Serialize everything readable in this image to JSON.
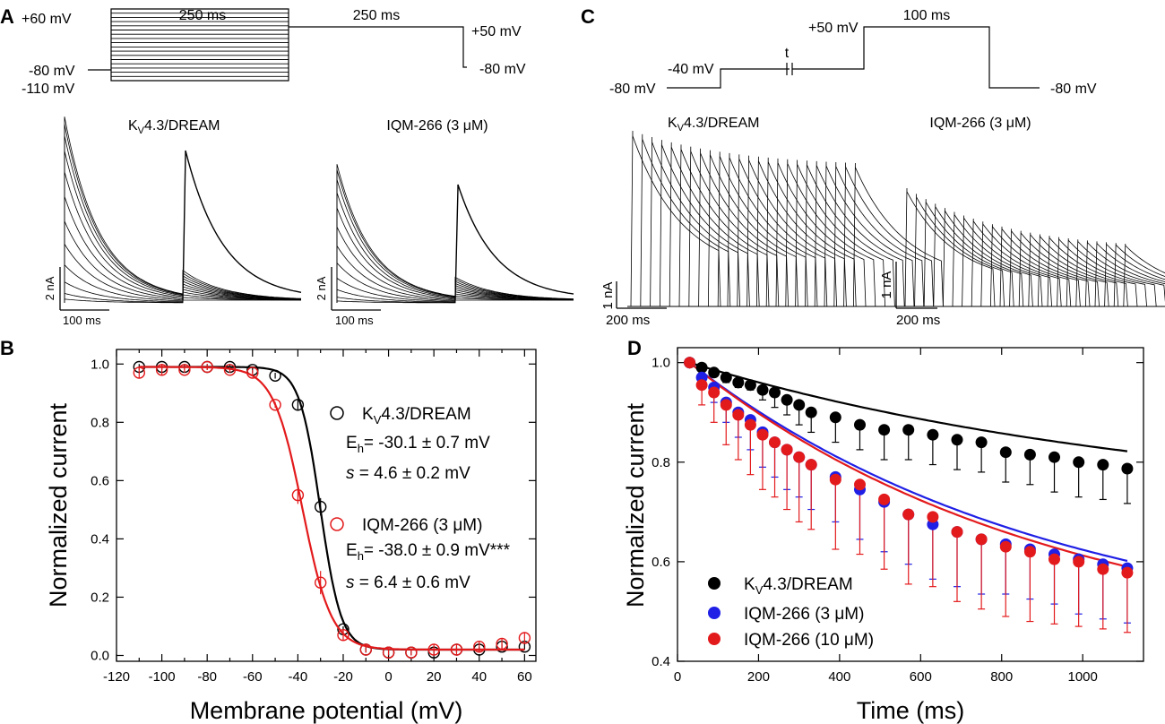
{
  "panels": {
    "A": {
      "letter": "A",
      "protocol": {
        "v_top": "+60 mV",
        "v_hold": "-80 mV",
        "v_bottom": "-110 mV",
        "v_test": "+50 mV",
        "v_end": "-80 mV",
        "dur1": "250 ms",
        "dur2": "250 ms"
      },
      "trace_titles": {
        "control_pre": "K",
        "control_sub": "V",
        "control_post": "4.3/DREAM",
        "drug": "IQM-266 (3 μM)"
      },
      "scale_bars": {
        "current": "2 nA",
        "time": "100 ms"
      }
    },
    "C": {
      "letter": "C",
      "protocol": {
        "v_hold": "-80 mV",
        "v_cond": "-40 mV",
        "gap_label": "t",
        "v_test": "+50 mV",
        "dur": "100 ms",
        "v_end": "-80 mV"
      },
      "trace_titles": {
        "control_pre": "K",
        "control_sub": "V",
        "control_post": "4.3/DREAM",
        "drug": "IQM-266 (3 μM)"
      },
      "scale_bars": {
        "current": "1 nA",
        "time": "200 ms"
      }
    },
    "B": {
      "letter": "B",
      "legend": {
        "control": {
          "name_pre": "K",
          "name_sub": "V",
          "name_post": "4.3/DREAM",
          "eh_pre": "E",
          "eh_sub": "h",
          "eh_val": "= -30.1 ± 0.7 mV",
          "s_sym": "s",
          "s_val": " = 4.6 ± 0.2 mV"
        },
        "drug": {
          "name": "IQM-266 (3 μM)",
          "eh_pre": "E",
          "eh_sub": "h",
          "eh_val": "= -38.0 ± 0.9 mV***",
          "s_sym": "s",
          "s_val": " = 6.4 ± 0.6 mV"
        }
      }
    },
    "D": {
      "letter": "D",
      "legend": {
        "control_pre": "K",
        "control_sub": "V",
        "control_post": "4.3/DREAM",
        "drug3": "IQM-266 (3 μM)",
        "drug10": "IQM-266 (10 μM)"
      }
    }
  },
  "chart_data": [
    {
      "id": "B",
      "type": "scatter",
      "xlabel": "Membrane potential (mV)",
      "ylabel": "Normalized current",
      "xlim": [
        -120,
        65
      ],
      "ylim": [
        -0.02,
        1.05
      ],
      "xticks": [
        -120,
        -110,
        -100,
        -90,
        -80,
        -70,
        -60,
        -50,
        -40,
        -30,
        -20,
        -10,
        0,
        10,
        20,
        30,
        40,
        50,
        60
      ],
      "xtick_labels": [
        "-120",
        "-100",
        "-80",
        "-60",
        "-40",
        "-20",
        "0",
        "20",
        "40",
        "60"
      ],
      "yticks": [
        0.0,
        0.2,
        0.4,
        0.6,
        0.8,
        1.0
      ],
      "ytick_labels": [
        "0.0",
        "0.2",
        "0.4",
        "0.6",
        "0.8",
        "1.0"
      ],
      "series": [
        {
          "name": "KV4.3/DREAM",
          "color": "#000000",
          "x": [
            -110,
            -100,
            -90,
            -80,
            -70,
            -60,
            -50,
            -40,
            -30,
            -20,
            -10,
            0,
            10,
            20,
            30,
            40,
            50,
            60
          ],
          "y": [
            0.99,
            0.99,
            0.99,
            0.99,
            0.99,
            0.98,
            0.96,
            0.86,
            0.51,
            0.09,
            0.02,
            0.01,
            0.01,
            0.01,
            0.02,
            0.02,
            0.03,
            0.03
          ],
          "err": [
            0.01,
            0.01,
            0.01,
            0.01,
            0.01,
            0.01,
            0.01,
            0.02,
            0.03,
            0.01,
            0.01,
            0.01,
            0.01,
            0.01,
            0.01,
            0.01,
            0.01,
            0.01
          ],
          "fit": {
            "v_half": -30.1,
            "slope": 4.6,
            "top": 0.99,
            "bottom": 0.02
          }
        },
        {
          "name": "IQM-266 (3 μM)",
          "color": "#e31a1c",
          "x": [
            -110,
            -100,
            -90,
            -80,
            -70,
            -60,
            -50,
            -40,
            -30,
            -20,
            -10,
            0,
            10,
            20,
            30,
            40,
            50,
            60
          ],
          "y": [
            0.97,
            0.98,
            0.98,
            0.99,
            0.98,
            0.97,
            0.86,
            0.55,
            0.25,
            0.07,
            0.02,
            0.01,
            0.01,
            0.02,
            0.02,
            0.03,
            0.04,
            0.06
          ],
          "err": [
            0.02,
            0.02,
            0.01,
            0.01,
            0.01,
            0.01,
            0.01,
            0.03,
            0.04,
            0.02,
            0.01,
            0.01,
            0.01,
            0.02,
            0.02,
            0.02,
            0.02,
            0.02
          ],
          "fit": {
            "v_half": -38.0,
            "slope": 6.4,
            "top": 0.99,
            "bottom": 0.02
          }
        }
      ]
    },
    {
      "id": "D",
      "type": "scatter",
      "xlabel": "Time (ms)",
      "ylabel": "Normalized current",
      "xlim": [
        0,
        1150
      ],
      "ylim": [
        0.4,
        1.03
      ],
      "xticks": [
        0,
        200,
        400,
        600,
        800,
        1000
      ],
      "xtick_labels": [
        "0",
        "200",
        "400",
        "600",
        "800",
        "1000"
      ],
      "yticks": [
        0.4,
        0.6,
        0.8,
        1.0
      ],
      "ytick_labels": [
        "0.4",
        "0.6",
        "0.8",
        "1.0"
      ],
      "series": [
        {
          "name": "KV4.3/DREAM",
          "color": "#000000",
          "x": [
            30,
            60,
            90,
            120,
            150,
            180,
            210,
            240,
            270,
            300,
            330,
            390,
            450,
            510,
            570,
            630,
            690,
            750,
            810,
            870,
            930,
            990,
            1050,
            1110
          ],
          "y": [
            1.0,
            0.99,
            0.98,
            0.97,
            0.96,
            0.955,
            0.945,
            0.94,
            0.925,
            0.915,
            0.9,
            0.89,
            0.875,
            0.865,
            0.865,
            0.855,
            0.845,
            0.84,
            0.82,
            0.815,
            0.81,
            0.8,
            0.795,
            0.787
          ],
          "err_low": [
            0.0,
            0.0,
            0.0,
            0.01,
            0.01,
            0.01,
            0.02,
            0.03,
            0.03,
            0.04,
            0.04,
            0.05,
            0.05,
            0.06,
            0.06,
            0.06,
            0.06,
            0.06,
            0.06,
            0.06,
            0.07,
            0.07,
            0.07,
            0.07
          ],
          "fit": {
            "a": 0.3,
            "tau": 1200,
            "t0": 30
          }
        },
        {
          "name": "IQM-266 (3 μM)",
          "color": "#1f1fe6",
          "x": [
            30,
            60,
            90,
            120,
            150,
            180,
            210,
            240,
            270,
            300,
            330,
            390,
            450,
            510,
            570,
            630,
            690,
            750,
            810,
            870,
            930,
            990,
            1050,
            1110
          ],
          "y": [
            1.0,
            0.97,
            0.95,
            0.92,
            0.9,
            0.885,
            0.86,
            0.84,
            0.825,
            0.81,
            0.795,
            0.77,
            0.745,
            0.72,
            0.695,
            0.675,
            0.66,
            0.645,
            0.635,
            0.625,
            0.615,
            0.605,
            0.595,
            0.587
          ],
          "err_low": [
            0.0,
            0.02,
            0.03,
            0.04,
            0.05,
            0.06,
            0.07,
            0.07,
            0.08,
            0.08,
            0.09,
            0.09,
            0.1,
            0.1,
            0.1,
            0.11,
            0.11,
            0.11,
            0.1,
            0.1,
            0.1,
            0.11,
            0.11,
            0.11
          ],
          "fit": {
            "a": 0.57,
            "tau": 900,
            "t0": 30
          }
        },
        {
          "name": "IQM-266 (10 μM)",
          "color": "#e31a1c",
          "x": [
            30,
            60,
            90,
            120,
            150,
            180,
            210,
            240,
            270,
            300,
            330,
            390,
            450,
            510,
            570,
            630,
            690,
            750,
            810,
            870,
            930,
            990,
            1050,
            1110
          ],
          "y": [
            1.0,
            0.955,
            0.94,
            0.915,
            0.895,
            0.875,
            0.855,
            0.84,
            0.825,
            0.81,
            0.795,
            0.765,
            0.755,
            0.725,
            0.695,
            0.69,
            0.66,
            0.645,
            0.63,
            0.62,
            0.605,
            0.6,
            0.585,
            0.578
          ],
          "err_low": [
            0.0,
            0.04,
            0.06,
            0.08,
            0.09,
            0.1,
            0.11,
            0.11,
            0.12,
            0.13,
            0.13,
            0.14,
            0.14,
            0.14,
            0.14,
            0.14,
            0.14,
            0.14,
            0.14,
            0.14,
            0.13,
            0.13,
            0.12,
            0.12
          ],
          "fit": {
            "a": 0.58,
            "tau": 880,
            "t0": 30
          }
        }
      ]
    }
  ]
}
